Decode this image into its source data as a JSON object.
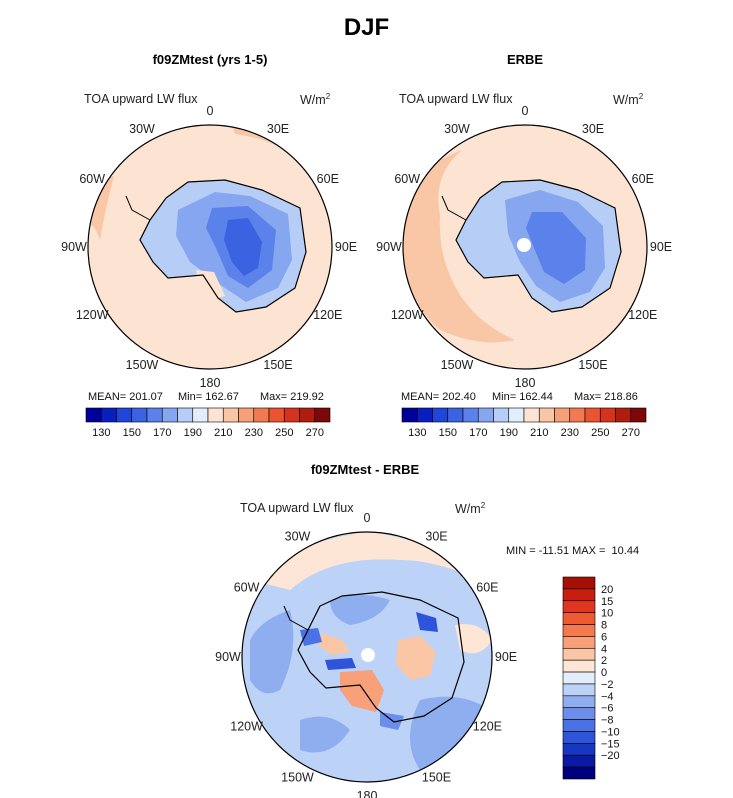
{
  "title": "DJF",
  "panels": [
    {
      "title": "f09ZMtest (yrs 1-5)",
      "variable": "TOA upward LW flux",
      "units": "W/m",
      "units_sup": "2",
      "stats": {
        "mean": "MEAN= 201.07",
        "min": "Min= 162.67",
        "max": "Max= 219.92"
      }
    },
    {
      "title": "ERBE",
      "variable": "TOA upward LW flux",
      "units": "W/m",
      "units_sup": "2",
      "stats": {
        "mean": "MEAN= 202.40",
        "min": "Min= 162.44",
        "max": "Max= 218.86"
      }
    },
    {
      "title": "f09ZMtest - ERBE",
      "variable": "TOA upward LW flux",
      "units": "W/m",
      "units_sup": "2",
      "stats": {
        "minmax": "MIN = -11.51 MAX =  10.44"
      }
    }
  ],
  "longitude_labels": [
    "0",
    "30E",
    "60E",
    "90E",
    "120E",
    "150E",
    "180",
    "150W",
    "120W",
    "90W",
    "60W",
    "30W"
  ],
  "colorbar_main": {
    "colors": [
      "#00009a",
      "#0a1ec0",
      "#1e46d8",
      "#3b62e0",
      "#5a82ea",
      "#86a6f0",
      "#b6cef6",
      "#e2eefb",
      "#fde4d2",
      "#f9c6a6",
      "#f6a07a",
      "#f27a52",
      "#ea5430",
      "#d6321c",
      "#b01c10",
      "#7c0808"
    ],
    "tick_labels": [
      "130",
      "150",
      "170",
      "190",
      "210",
      "230",
      "250",
      "270"
    ]
  },
  "colorbar_diff": {
    "colors": [
      "#a41006",
      "#c81e10",
      "#e0361e",
      "#ee5a32",
      "#f47a4e",
      "#f7a07a",
      "#fac6a6",
      "#fde6d6",
      "#e4eefb",
      "#bcd2f6",
      "#8eaef0",
      "#6a8eea",
      "#4a72e4",
      "#2e54dc",
      "#1836c4",
      "#0a1aa4",
      "#00007e"
    ],
    "tick_labels": [
      "20",
      "15",
      "10",
      "8",
      "6",
      "4",
      "2",
      "0",
      "−2",
      "−4",
      "−6",
      "−8",
      "−10",
      "−15",
      "−20"
    ]
  }
}
